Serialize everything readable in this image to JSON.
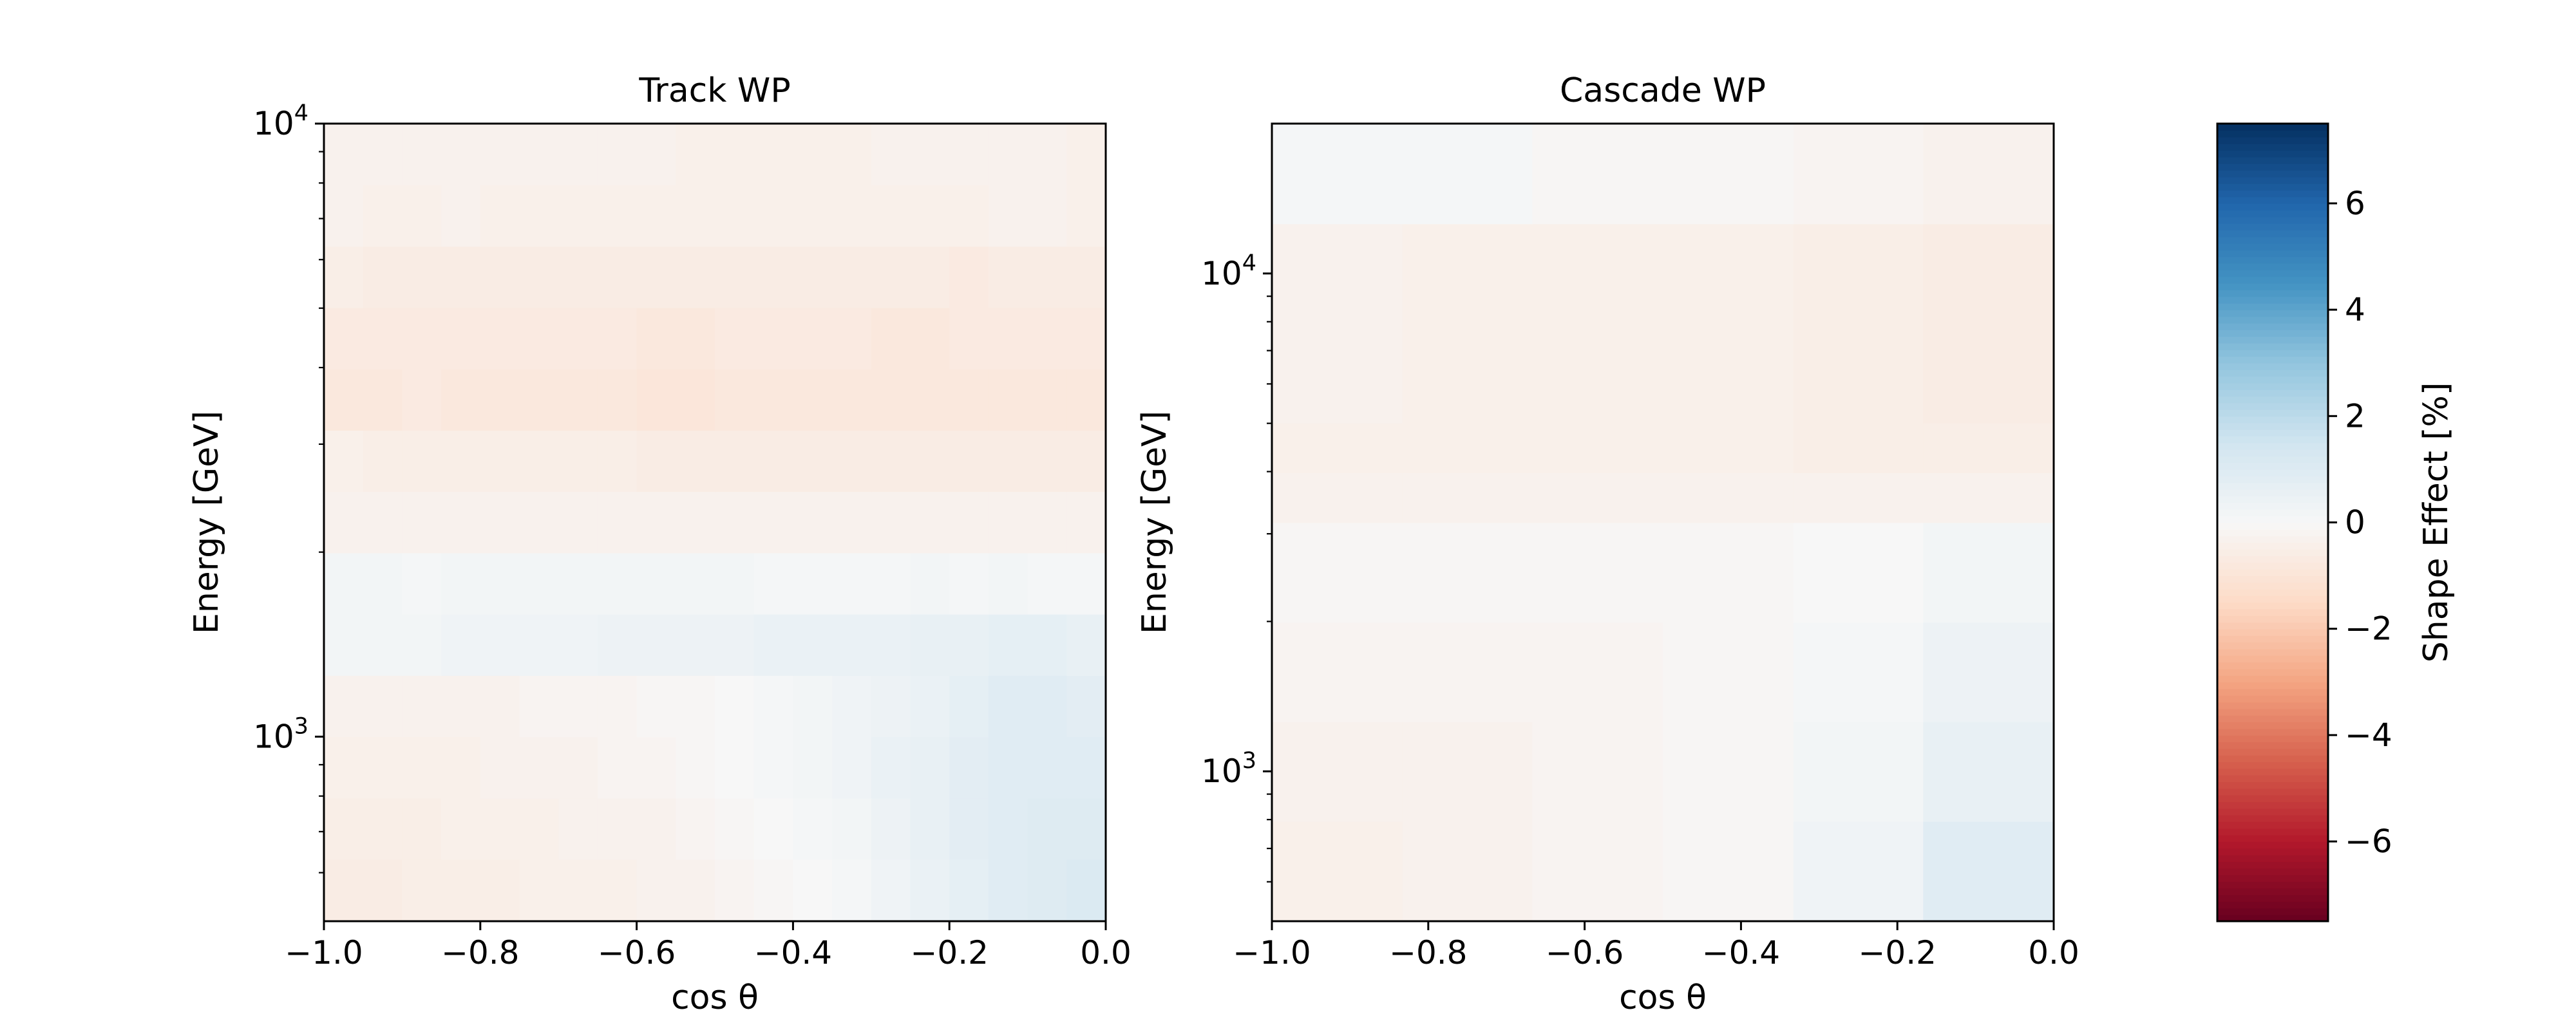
{
  "chart_data": [
    {
      "type": "heatmap",
      "title": "Track WP",
      "xlabel": "cos θ",
      "ylabel": "Energy [GeV]",
      "xlim": [
        -1.0,
        0.0
      ],
      "ylim": [
        500,
        10000
      ],
      "yscale": "log",
      "x_edges": [
        -1.0,
        -0.95,
        -0.9,
        -0.85,
        -0.8,
        -0.75,
        -0.7,
        -0.65,
        -0.6,
        -0.55,
        -0.5,
        -0.45,
        -0.4,
        -0.35,
        -0.3,
        -0.25,
        -0.2,
        -0.15,
        -0.1,
        -0.05,
        0.0
      ],
      "y_edges": [
        500,
        631,
        794,
        1000,
        1259,
        1585,
        1995,
        2512,
        3162,
        3981,
        5012,
        6310,
        7943,
        10000
      ],
      "values": [
        [
          -0.6,
          -0.6,
          -0.5,
          -0.5,
          -0.5,
          -0.4,
          -0.4,
          -0.4,
          -0.3,
          -0.3,
          -0.2,
          -0.1,
          0.0,
          0.1,
          0.3,
          0.5,
          0.7,
          0.9,
          1.0,
          1.1
        ],
        [
          -0.5,
          -0.5,
          -0.5,
          -0.4,
          -0.4,
          -0.4,
          -0.3,
          -0.3,
          -0.3,
          -0.2,
          -0.1,
          0.0,
          0.1,
          0.2,
          0.4,
          0.6,
          0.8,
          0.9,
          1.0,
          1.0
        ],
        [
          -0.4,
          -0.4,
          -0.4,
          -0.4,
          -0.3,
          -0.3,
          -0.3,
          -0.2,
          -0.2,
          -0.1,
          0.0,
          0.1,
          0.2,
          0.3,
          0.5,
          0.6,
          0.8,
          0.9,
          0.9,
          0.9
        ],
        [
          -0.3,
          -0.3,
          -0.3,
          -0.3,
          -0.3,
          -0.2,
          -0.2,
          -0.2,
          -0.1,
          -0.1,
          0.0,
          0.1,
          0.2,
          0.3,
          0.4,
          0.5,
          0.7,
          0.9,
          0.9,
          0.8
        ],
        [
          0.2,
          0.2,
          0.2,
          0.3,
          0.3,
          0.3,
          0.3,
          0.4,
          0.4,
          0.4,
          0.4,
          0.5,
          0.5,
          0.5,
          0.5,
          0.6,
          0.6,
          0.7,
          0.7,
          0.6
        ],
        [
          0.2,
          0.2,
          0.1,
          0.2,
          0.2,
          0.2,
          0.2,
          0.2,
          0.2,
          0.2,
          0.2,
          0.1,
          0.1,
          0.1,
          0.1,
          0.2,
          0.1,
          0.2,
          0.1,
          0.1
        ],
        [
          -0.3,
          -0.3,
          -0.3,
          -0.3,
          -0.3,
          -0.3,
          -0.3,
          -0.3,
          -0.3,
          -0.3,
          -0.3,
          -0.3,
          -0.3,
          -0.3,
          -0.3,
          -0.3,
          -0.3,
          -0.3,
          -0.3,
          -0.3
        ],
        [
          -0.4,
          -0.5,
          -0.5,
          -0.5,
          -0.5,
          -0.5,
          -0.5,
          -0.5,
          -0.6,
          -0.6,
          -0.6,
          -0.6,
          -0.6,
          -0.6,
          -0.6,
          -0.6,
          -0.6,
          -0.6,
          -0.6,
          -0.6
        ],
        [
          -0.8,
          -0.8,
          -0.7,
          -0.8,
          -0.8,
          -0.8,
          -0.8,
          -0.8,
          -0.9,
          -0.9,
          -0.8,
          -0.8,
          -0.8,
          -0.8,
          -0.8,
          -0.8,
          -0.8,
          -0.8,
          -0.8,
          -0.8
        ],
        [
          -0.7,
          -0.7,
          -0.7,
          -0.7,
          -0.7,
          -0.7,
          -0.7,
          -0.7,
          -0.8,
          -0.8,
          -0.7,
          -0.7,
          -0.7,
          -0.7,
          -0.8,
          -0.8,
          -0.7,
          -0.7,
          -0.7,
          -0.7
        ],
        [
          -0.5,
          -0.6,
          -0.6,
          -0.6,
          -0.6,
          -0.6,
          -0.6,
          -0.6,
          -0.6,
          -0.6,
          -0.6,
          -0.6,
          -0.6,
          -0.6,
          -0.6,
          -0.6,
          -0.7,
          -0.6,
          -0.6,
          -0.6
        ],
        [
          -0.3,
          -0.4,
          -0.4,
          -0.3,
          -0.4,
          -0.4,
          -0.4,
          -0.4,
          -0.4,
          -0.4,
          -0.4,
          -0.4,
          -0.4,
          -0.4,
          -0.4,
          -0.4,
          -0.4,
          -0.3,
          -0.3,
          -0.4
        ],
        [
          -0.3,
          -0.3,
          -0.3,
          -0.3,
          -0.3,
          -0.3,
          -0.3,
          -0.3,
          -0.3,
          -0.4,
          -0.4,
          -0.4,
          -0.4,
          -0.4,
          -0.3,
          -0.3,
          -0.3,
          -0.3,
          -0.3,
          -0.4
        ]
      ]
    },
    {
      "type": "heatmap",
      "title": "Cascade WP",
      "xlabel": "cos θ",
      "ylabel": "Energy [GeV]",
      "xlim": [
        -1.0,
        0.0
      ],
      "ylim": [
        500,
        20000
      ],
      "yscale": "log",
      "x_edges": [
        -1.0,
        -0.833,
        -0.667,
        -0.5,
        -0.333,
        -0.167,
        0.0
      ],
      "y_edges": [
        500,
        794,
        1259,
        1995,
        3162,
        3981,
        5012,
        12589,
        20000
      ],
      "values": [
        [
          -0.4,
          -0.3,
          -0.2,
          -0.1,
          0.3,
          0.9
        ],
        [
          -0.3,
          -0.3,
          -0.2,
          -0.1,
          0.2,
          0.6
        ],
        [
          -0.2,
          -0.2,
          -0.2,
          -0.1,
          0.1,
          0.4
        ],
        [
          -0.1,
          -0.1,
          -0.1,
          -0.1,
          0.0,
          0.2
        ],
        [
          -0.3,
          -0.3,
          -0.3,
          -0.3,
          -0.3,
          -0.3
        ],
        [
          -0.4,
          -0.4,
          -0.4,
          -0.4,
          -0.5,
          -0.5
        ],
        [
          -0.3,
          -0.4,
          -0.4,
          -0.4,
          -0.5,
          -0.6
        ],
        [
          0.1,
          0.1,
          -0.1,
          -0.1,
          -0.2,
          -0.3
        ]
      ]
    }
  ],
  "colorbar": {
    "label": "Shape Effect [%]",
    "colormap": "RdBu",
    "vmin": -7.5,
    "vmax": 7.5,
    "ticks": [
      -6,
      -4,
      -2,
      0,
      2,
      4,
      6
    ],
    "tick_labels": [
      "−6",
      "−4",
      "−2",
      "0",
      "2",
      "4",
      "6"
    ]
  }
}
